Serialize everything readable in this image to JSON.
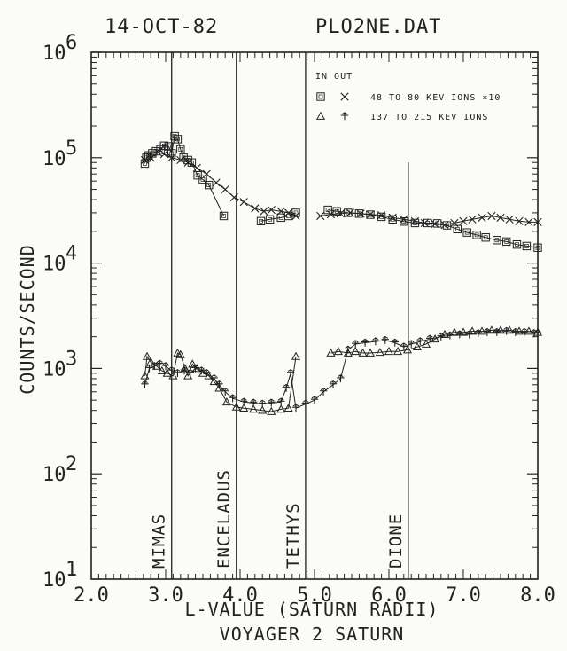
{
  "header": {
    "date": "14-OCT-82",
    "file": "PLO2NE.DAT"
  },
  "chart_data": {
    "type": "scatter",
    "xlabel": "L-VALUE (SATURN RADII)",
    "subtitle": "VOYAGER 2 SATURN",
    "ylabel": "COUNTS/SECOND",
    "xlim": [
      2.0,
      8.0
    ],
    "ylim": [
      10,
      1000000
    ],
    "yscale": "log",
    "xticks": [
      "2.0",
      "3.0",
      "4.0",
      "5.0",
      "6.0",
      "7.0",
      "8.0"
    ],
    "yticks": [
      {
        "value": 10,
        "label": "10",
        "exp": "1"
      },
      {
        "value": 100,
        "label": "10",
        "exp": "2"
      },
      {
        "value": 1000,
        "label": "10",
        "exp": "3"
      },
      {
        "value": 10000,
        "label": "10",
        "exp": "4"
      },
      {
        "value": 100000,
        "label": "10",
        "exp": "5"
      },
      {
        "value": 1000000,
        "label": "10",
        "exp": "6"
      }
    ],
    "legend": {
      "header": "IN OUT",
      "entries": [
        {
          "text": "48 TO 80 KEV IONS ×10",
          "in_marker": "square",
          "out_marker": "x"
        },
        {
          "text": "137 TO 215 KEV IONS",
          "in_marker": "triangle",
          "out_marker": "plus"
        }
      ]
    },
    "moon_lines": [
      {
        "name": "MIMAS",
        "x": 3.08
      },
      {
        "name": "ENCELADUS",
        "x": 3.95
      },
      {
        "name": "TETHYS",
        "x": 4.88
      },
      {
        "name": "DIONE",
        "x": 6.26
      }
    ],
    "series": [
      {
        "marker": "square",
        "segments": [
          [
            [
              2.72,
              88000
            ],
            [
              2.74,
              100000
            ],
            [
              2.77,
              105000
            ],
            [
              2.82,
              110000
            ],
            [
              2.87,
              115000
            ],
            [
              2.93,
              120000
            ],
            [
              2.98,
              130000
            ],
            [
              3.04,
              128000
            ],
            [
              3.08,
              110000
            ],
            [
              3.12,
              160000
            ],
            [
              3.16,
              150000
            ],
            [
              3.2,
              120000
            ],
            [
              3.24,
              100000
            ],
            [
              3.3,
              95000
            ],
            [
              3.35,
              90000
            ],
            [
              3.43,
              68000
            ],
            [
              3.5,
              62000
            ],
            [
              3.58,
              55000
            ],
            [
              3.78,
              28000
            ]
          ],
          [
            [
              4.28,
              25000
            ],
            [
              4.4,
              26000
            ],
            [
              4.55,
              27000
            ],
            [
              4.65,
              28000
            ],
            [
              4.75,
              30000
            ]
          ],
          [
            [
              5.18,
              32000
            ],
            [
              5.3,
              31000
            ],
            [
              5.45,
              30000
            ],
            [
              5.6,
              29500
            ],
            [
              5.75,
              28800
            ],
            [
              5.9,
              27500
            ],
            [
              6.05,
              26000
            ],
            [
              6.2,
              24800
            ],
            [
              6.35,
              24000
            ],
            [
              6.52,
              24000
            ],
            [
              6.65,
              23800
            ],
            [
              6.78,
              22800
            ],
            [
              6.92,
              21000
            ],
            [
              7.05,
              19500
            ],
            [
              7.18,
              18500
            ],
            [
              7.3,
              17500
            ],
            [
              7.45,
              16500
            ],
            [
              7.58,
              16000
            ],
            [
              7.72,
              15000
            ],
            [
              7.85,
              14500
            ],
            [
              8.0,
              14000
            ]
          ]
        ]
      },
      {
        "marker": "x",
        "segments": [
          [
            [
              2.72,
              95000
            ],
            [
              2.8,
              100000
            ],
            [
              2.9,
              112000
            ],
            [
              2.98,
              108000
            ],
            [
              3.08,
              100000
            ],
            [
              3.2,
              95000
            ],
            [
              3.3,
              90000
            ],
            [
              3.42,
              80000
            ],
            [
              3.55,
              70000
            ],
            [
              3.68,
              58000
            ],
            [
              3.8,
              50000
            ],
            [
              3.92,
              42000
            ],
            [
              4.05,
              38000
            ],
            [
              4.2,
              33000
            ],
            [
              4.32,
              31000
            ],
            [
              4.42,
              32000
            ],
            [
              4.55,
              31000
            ],
            [
              4.65,
              30000
            ],
            [
              4.75,
              28000
            ]
          ],
          [
            [
              5.08,
              28000
            ],
            [
              5.22,
              29000
            ],
            [
              5.35,
              29500
            ],
            [
              5.48,
              30000
            ],
            [
              5.62,
              29500
            ],
            [
              5.75,
              29000
            ],
            [
              5.9,
              28500
            ],
            [
              6.05,
              27000
            ],
            [
              6.2,
              26000
            ],
            [
              6.35,
              25000
            ],
            [
              6.48,
              24000
            ],
            [
              6.62,
              23500
            ],
            [
              6.75,
              23000
            ],
            [
              6.88,
              24000
            ],
            [
              7.0,
              25000
            ],
            [
              7.12,
              26000
            ],
            [
              7.25,
              27000
            ],
            [
              7.38,
              28000
            ],
            [
              7.5,
              27000
            ],
            [
              7.62,
              26000
            ],
            [
              7.75,
              25000
            ],
            [
              7.88,
              24500
            ],
            [
              8.0,
              24500
            ]
          ]
        ]
      },
      {
        "marker": "triangle",
        "segments": [
          [
            [
              2.72,
              850
            ],
            [
              2.75,
              1300
            ],
            [
              2.8,
              1150
            ],
            [
              2.88,
              1050
            ],
            [
              2.95,
              950
            ],
            [
              3.02,
              900
            ],
            [
              3.1,
              850
            ],
            [
              3.16,
              1400
            ],
            [
              3.2,
              1350
            ],
            [
              3.26,
              1000
            ],
            [
              3.3,
              850
            ],
            [
              3.36,
              1100
            ],
            [
              3.42,
              1000
            ],
            [
              3.5,
              900
            ],
            [
              3.58,
              850
            ],
            [
              3.65,
              750
            ],
            [
              3.72,
              650
            ],
            [
              3.82,
              480
            ],
            [
              3.95,
              430
            ],
            [
              4.05,
              420
            ],
            [
              4.18,
              410
            ],
            [
              4.3,
              400
            ],
            [
              4.42,
              390
            ],
            [
              4.55,
              410
            ],
            [
              4.65,
              420
            ],
            [
              4.75,
              1300
            ]
          ],
          [
            [
              5.22,
              1400
            ],
            [
              5.32,
              1450
            ],
            [
              5.45,
              1400
            ],
            [
              5.55,
              1450
            ],
            [
              5.65,
              1400
            ],
            [
              5.75,
              1400
            ],
            [
              5.88,
              1420
            ],
            [
              6.0,
              1450
            ],
            [
              6.12,
              1450
            ],
            [
              6.25,
              1500
            ],
            [
              6.38,
              1600
            ],
            [
              6.5,
              1700
            ],
            [
              6.62,
              1900
            ],
            [
              6.75,
              2100
            ],
            [
              6.88,
              2200
            ],
            [
              7.0,
              2200
            ],
            [
              7.12,
              2250
            ],
            [
              7.25,
              2250
            ],
            [
              7.38,
              2300
            ],
            [
              7.5,
              2300
            ],
            [
              7.62,
              2300
            ],
            [
              7.75,
              2250
            ],
            [
              7.88,
              2250
            ],
            [
              8.0,
              2200
            ]
          ]
        ]
      },
      {
        "marker": "plus",
        "segments": [
          [
            [
              2.72,
              700
            ],
            [
              2.78,
              1000
            ],
            [
              2.85,
              1050
            ],
            [
              2.92,
              1100
            ],
            [
              3.0,
              1050
            ],
            [
              3.08,
              950
            ],
            [
              3.16,
              900
            ],
            [
              3.25,
              950
            ],
            [
              3.33,
              900
            ],
            [
              3.4,
              1000
            ],
            [
              3.48,
              950
            ],
            [
              3.55,
              900
            ],
            [
              3.65,
              800
            ],
            [
              3.72,
              700
            ],
            [
              3.8,
              600
            ],
            [
              3.9,
              520
            ],
            [
              4.05,
              480
            ],
            [
              4.18,
              470
            ],
            [
              4.3,
              460
            ],
            [
              4.42,
              470
            ],
            [
              4.55,
              480
            ],
            [
              4.62,
              650
            ],
            [
              4.68,
              900
            ],
            [
              4.75,
              420
            ],
            [
              4.88,
              460
            ],
            [
              5.0,
              500
            ],
            [
              5.12,
              600
            ],
            [
              5.25,
              700
            ],
            [
              5.35,
              800
            ],
            [
              5.45,
              1500
            ],
            [
              5.55,
              1700
            ],
            [
              5.68,
              1750
            ],
            [
              5.82,
              1800
            ],
            [
              5.95,
              1850
            ],
            [
              6.08,
              1750
            ],
            [
              6.2,
              1600
            ],
            [
              6.3,
              1700
            ],
            [
              6.42,
              1800
            ],
            [
              6.55,
              1900
            ],
            [
              6.7,
              2000
            ],
            [
              6.82,
              2050
            ],
            [
              6.95,
              2100
            ],
            [
              7.08,
              2100
            ],
            [
              7.2,
              2150
            ],
            [
              7.32,
              2200
            ],
            [
              7.45,
              2200
            ],
            [
              7.58,
              2250
            ],
            [
              7.7,
              2200
            ],
            [
              7.82,
              2200
            ],
            [
              7.95,
              2150
            ],
            [
              8.0,
              2150
            ]
          ]
        ]
      }
    ]
  }
}
